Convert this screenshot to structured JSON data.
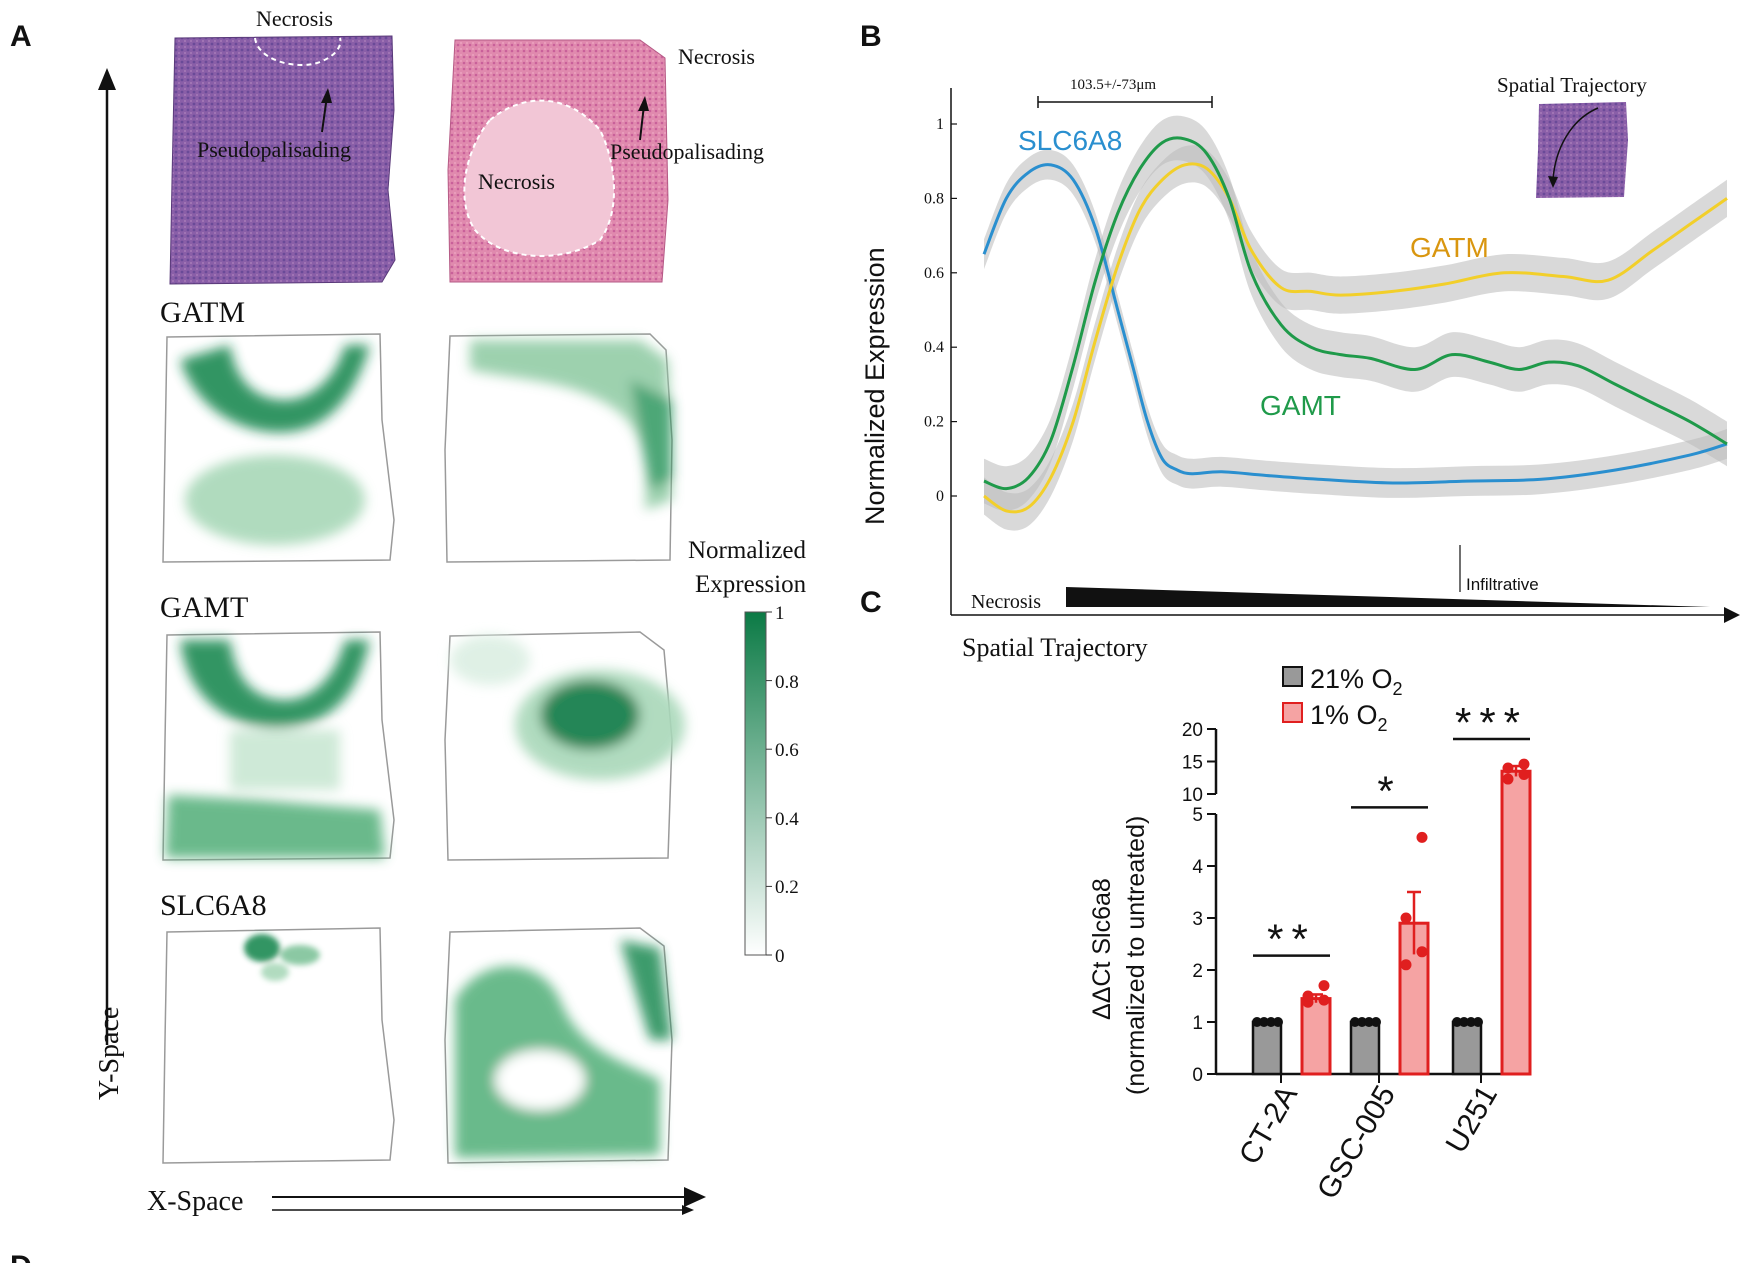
{
  "panel_letters": {
    "a": "A",
    "b": "B",
    "c": "C",
    "d": "D"
  },
  "panel_a": {
    "histology": {
      "left": {
        "necrosis": "Necrosis",
        "pseudopalisading": "Pseudopalisading"
      },
      "right": {
        "necrosis_outer": "Necrosis",
        "necrosis_inner": "Necrosis",
        "pseudopalisading": "Pseudopalisading"
      }
    },
    "gene_labels": [
      "GATM",
      "GAMT",
      "SLC6A8"
    ],
    "y_axis": "Y-Space",
    "x_axis": "X-Space",
    "colorbar": {
      "title_line1": "Normalized",
      "title_line2": "Expression",
      "ticks": [
        "1",
        "0.8",
        "0.6",
        "0.4",
        "0.2",
        "0"
      ],
      "color_high": "#0b7a45",
      "color_low": "#ffffff"
    }
  },
  "chart_data": [
    {
      "type": "line",
      "panel": "B",
      "ylabel": "Normalized Expression",
      "xlabel": "Spatial Trajectory",
      "ylim": [
        -0.2,
        1.05
      ],
      "xlim": [
        0,
        100
      ],
      "ytick_labels": [
        "1",
        "0.8",
        "0.6",
        "0.4",
        "0.2",
        "0"
      ],
      "yticks": [
        1,
        0.8,
        0.6,
        0.4,
        0.2,
        0
      ],
      "distance_annotation": "103.5+/-73μm",
      "inset_label": "Spatial Trajectory",
      "gradient_start_label": "Necrosis",
      "gradient_end_label": "Infiltrative",
      "series": [
        {
          "name": "SLC6A8",
          "color": "#2a8fcf",
          "x": [
            0,
            3,
            6,
            9,
            12,
            15,
            18,
            20,
            22,
            24,
            26,
            28,
            32,
            38,
            45,
            55,
            65,
            75,
            85,
            95,
            100
          ],
          "y": [
            0.65,
            0.8,
            0.87,
            0.89,
            0.85,
            0.72,
            0.5,
            0.35,
            0.2,
            0.1,
            0.07,
            0.06,
            0.065,
            0.055,
            0.045,
            0.035,
            0.04,
            0.045,
            0.07,
            0.11,
            0.14
          ],
          "band": 0.04
        },
        {
          "name": "GATM",
          "color": "#f2cf2a",
          "x": [
            0,
            3,
            6,
            9,
            12,
            15,
            18,
            21,
            24,
            27,
            30,
            33,
            36,
            40,
            44,
            48,
            55,
            62,
            70,
            78,
            84,
            90,
            95,
            100
          ],
          "y": [
            0.0,
            -0.04,
            -0.03,
            0.05,
            0.2,
            0.42,
            0.62,
            0.77,
            0.85,
            0.89,
            0.88,
            0.8,
            0.66,
            0.56,
            0.55,
            0.54,
            0.55,
            0.57,
            0.6,
            0.59,
            0.58,
            0.66,
            0.73,
            0.8
          ],
          "band": 0.05
        },
        {
          "name": "GAMT",
          "color": "#1f9a4a",
          "x": [
            0,
            3,
            6,
            9,
            12,
            15,
            18,
            21,
            24,
            27,
            30,
            33,
            36,
            40,
            44,
            48,
            52,
            58,
            63,
            68,
            72,
            76,
            80,
            85,
            90,
            95,
            100
          ],
          "y": [
            0.04,
            0.02,
            0.05,
            0.15,
            0.35,
            0.58,
            0.76,
            0.88,
            0.95,
            0.96,
            0.92,
            0.8,
            0.6,
            0.46,
            0.4,
            0.38,
            0.37,
            0.34,
            0.38,
            0.36,
            0.34,
            0.36,
            0.35,
            0.3,
            0.25,
            0.2,
            0.14
          ],
          "band": 0.06
        }
      ]
    },
    {
      "type": "bar",
      "panel": "C",
      "ylabel_line1": "ΔΔCt Slc6a8",
      "ylabel_line2": "(normalized to untreated)",
      "categories": [
        "CT-2A",
        "GSC-005",
        "U251"
      ],
      "legend": [
        {
          "name": "21% O",
          "sub": "2",
          "color": "#999999",
          "edge": "#111111"
        },
        {
          "name": "1% O",
          "sub": "2",
          "color": "#f5a3a3",
          "edge": "#e01f1f"
        }
      ],
      "series": [
        {
          "name": "21% O2",
          "values": [
            1,
            1,
            1
          ],
          "err": [
            0,
            0,
            0
          ],
          "points": [
            [
              1,
              1,
              1,
              1
            ],
            [
              1,
              1,
              1,
              1
            ],
            [
              1,
              1,
              1,
              1
            ]
          ]
        },
        {
          "name": "1% O2",
          "values": [
            1.45,
            2.9,
            13.5
          ],
          "err": [
            0.08,
            0.6,
            0.8
          ],
          "points": [
            [
              1.38,
              1.42,
              1.5,
              1.7
            ],
            [
              2.1,
              2.35,
              3.0,
              4.55
            ],
            [
              12.3,
              13.0,
              14.0,
              14.6
            ]
          ]
        }
      ],
      "lower_axis": {
        "range": [
          0,
          5
        ],
        "ticks": [
          "0",
          "1",
          "2",
          "3",
          "4",
          "5"
        ]
      },
      "upper_axis": {
        "range": [
          10,
          20
        ],
        "ticks": [
          "10",
          "15",
          "20"
        ]
      },
      "significance": [
        "**",
        "*",
        "***"
      ]
    }
  ]
}
